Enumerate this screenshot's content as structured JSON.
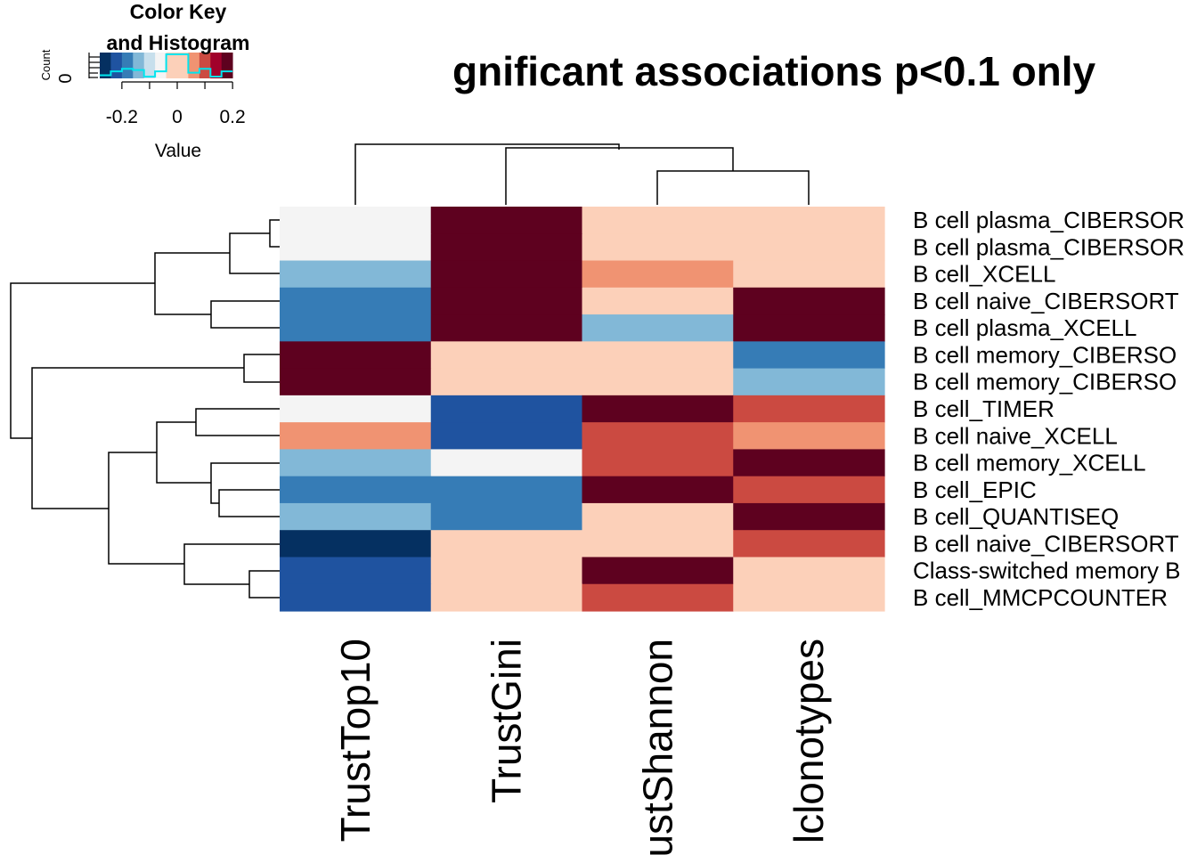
{
  "chart_data": {
    "type": "heatmap",
    "title": "gnificant associations p<0.1 only",
    "columns": [
      "TrustTop10",
      "TrustGini",
      "ustShannon",
      "lclonotypes"
    ],
    "rows": [
      "B cell plasma_CIBERSOR",
      "B cell plasma_CIBERSOR",
      "B cell_XCELL",
      "B cell naive_CIBERSORT",
      "B cell plasma_XCELL",
      "B cell memory_CIBERSO",
      "B cell memory_CIBERSO",
      "B cell_TIMER",
      "B cell naive_XCELL",
      "B cell memory_XCELL",
      "B cell_EPIC",
      "B cell_QUANTISEQ",
      "B cell naive_CIBERSORT",
      "Class-switched memory B",
      "B cell_MMCPCOUNTER"
    ],
    "values": [
      [
        -0.06,
        0.22,
        0,
        0
      ],
      [
        -0.06,
        0.22,
        0,
        0
      ],
      [
        -0.12,
        0.22,
        0.06,
        0
      ],
      [
        -0.19,
        0.26,
        0,
        0.17
      ],
      [
        -0.19,
        0.26,
        -0.12,
        0.22
      ],
      [
        0.26,
        0,
        0,
        -0.19
      ],
      [
        0.22,
        0,
        0,
        -0.12
      ],
      [
        -0.06,
        -0.22,
        0.26,
        0.12
      ],
      [
        0.06,
        -0.22,
        0.12,
        0.06
      ],
      [
        -0.12,
        -0.06,
        0.12,
        0.17
      ],
      [
        -0.19,
        -0.19,
        0.17,
        0.12
      ],
      [
        -0.12,
        -0.19,
        0,
        0.22
      ],
      [
        -0.26,
        0,
        0,
        0.12
      ],
      [
        -0.22,
        0,
        0.17,
        0
      ],
      [
        -0.22,
        0,
        0.12,
        0
      ]
    ],
    "color_scale": {
      "breaks": [
        -0.28,
        -0.24,
        -0.2,
        -0.16,
        -0.12,
        -0.08,
        -0.04,
        0.04,
        0.08,
        0.12,
        0.16,
        0.2,
        0.24,
        0.28
      ],
      "colors": [
        "#053061",
        "#1f53a0",
        "#367cb6",
        "#82b8d7",
        "#c7dfec",
        "#f4f4f4",
        "#fcd0b9",
        "#f09372",
        "#cb4a41",
        "#a1012b",
        "#5e011f"
      ]
    },
    "color_key": {
      "title": "Color Key\nand Histogram",
      "xlabel": "Value",
      "ylabel": "Count",
      "y_tick": "0",
      "x_ticks": [
        "-0.2",
        "0",
        "0.2"
      ],
      "x_tick_values": [
        -0.2,
        0,
        0.2
      ],
      "histogram_color": "#00e5ee"
    },
    "row_order": [
      0,
      1,
      2,
      3,
      4,
      5,
      6,
      7,
      8,
      9,
      10,
      11,
      12,
      13,
      14
    ],
    "column_dendrogram": "((TrustTop10),(TrustGini,(ustShannon,lclonotypes)))",
    "row_dendrogram": "((((0,1),2),(3,4)),((5,6),(((7,8),(9,(10,11))),(12,(13,14)))))"
  }
}
